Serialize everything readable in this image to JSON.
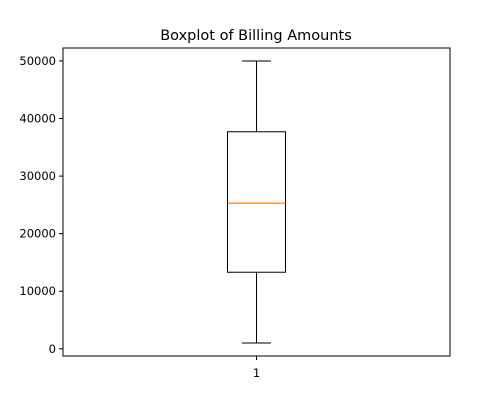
{
  "chart_data": {
    "type": "boxplot",
    "title": "Boxplot of Billing Amounts",
    "categories": [
      "1"
    ],
    "box": {
      "min": 1000,
      "q1": 13300,
      "median": 25300,
      "q3": 37700,
      "max": 50000
    },
    "ylim": [
      -1250,
      52250
    ],
    "yticks": [
      0,
      10000,
      20000,
      30000,
      40000,
      50000
    ],
    "ytick_labels": [
      "0",
      "10000",
      "20000",
      "30000",
      "40000",
      "50000"
    ],
    "colors": {
      "box": "#000000",
      "median": "#ff7f0e"
    },
    "grid": false
  }
}
